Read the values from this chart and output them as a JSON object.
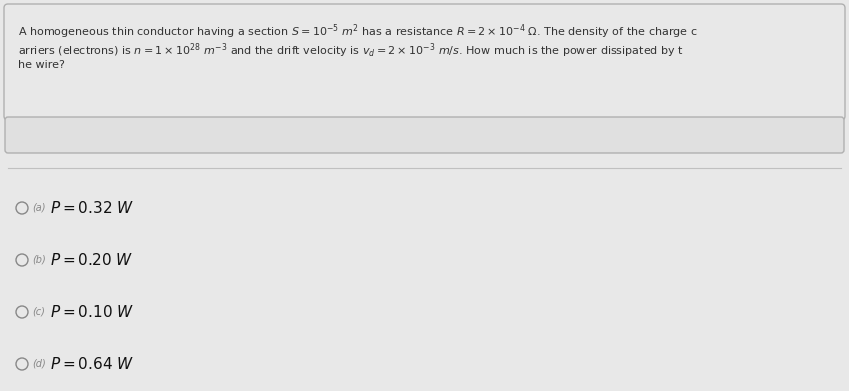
{
  "background_color": "#e8e8e8",
  "question_box_color": "#e8e8e8",
  "question_border_color": "#b0b0b0",
  "input_box_color": "#e0e0e0",
  "input_border_color": "#b0b0b0",
  "divider_color": "#c0c0c0",
  "circle_color": "#888888",
  "question_text_color": "#333333",
  "label_color": "#888888",
  "answer_bg_color": "#ffffff",
  "answer_text_color": "#111111",
  "question_line1": "A homogeneous thin conductor having a section $S = 10^{-5}$ $m^2$ has a resistance $R = 2 \\times 10^{-4}$ $\\Omega$. The density of the charge c",
  "question_line2": "arriers (electrons) is $n = 1 \\times 10^{28}$ $m^{-3}$ and the drift velocity is $v_d = 2 \\times 10^{-3}$ $m/s$. How much is the power dissipated by t",
  "question_line3": "he wire?",
  "answers": [
    {
      "label": "(a)",
      "value": "0.32"
    },
    {
      "label": "(b)",
      "value": "0.20"
    },
    {
      "label": "(c)",
      "value": "0.10"
    },
    {
      "label": "(d)",
      "value": "0.64"
    }
  ],
  "figsize": [
    8.49,
    3.91
  ],
  "dpi": 100
}
